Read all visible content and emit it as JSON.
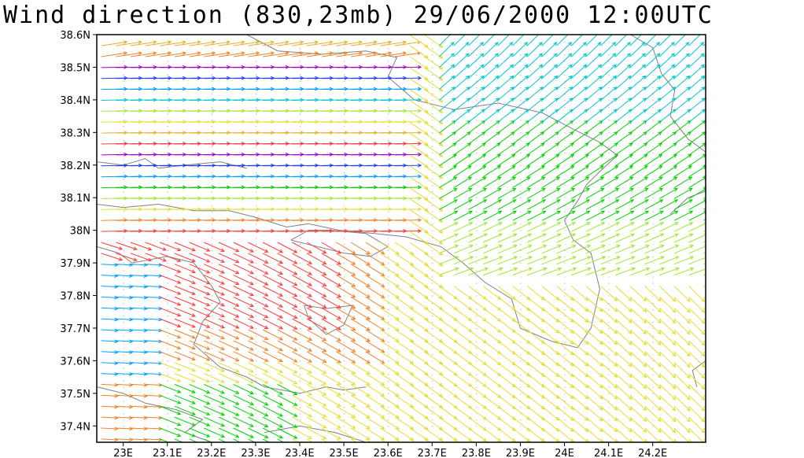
{
  "title": "Wind direction (830,23mb) 29/06/2000 12:00UTC",
  "map": {
    "lon_range": [
      22.94,
      24.32
    ],
    "lat_range": [
      37.35,
      38.6
    ],
    "lon_ticks": [
      "23E",
      "23.1E",
      "23.2E",
      "23.3E",
      "23.4E",
      "23.5E",
      "23.6E",
      "23.7E",
      "23.8E",
      "23.9E",
      "24E",
      "24.1E",
      "24.2E"
    ],
    "lat_ticks": [
      "38.6N",
      "38.5N",
      "38.4N",
      "38.3N",
      "38.2N",
      "38.1N",
      "38N",
      "37.9N",
      "37.8N",
      "37.7N",
      "37.6N",
      "37.5N",
      "37.4N"
    ],
    "grid": "dotted",
    "coastline_color": "#808080",
    "vector_colors": [
      "#a000c8",
      "#1e3cff",
      "#00a0ff",
      "#00c8c8",
      "#00d200",
      "#a0e632",
      "#e6dc32",
      "#e6af2d",
      "#f08228",
      "#fa3c3c"
    ]
  }
}
